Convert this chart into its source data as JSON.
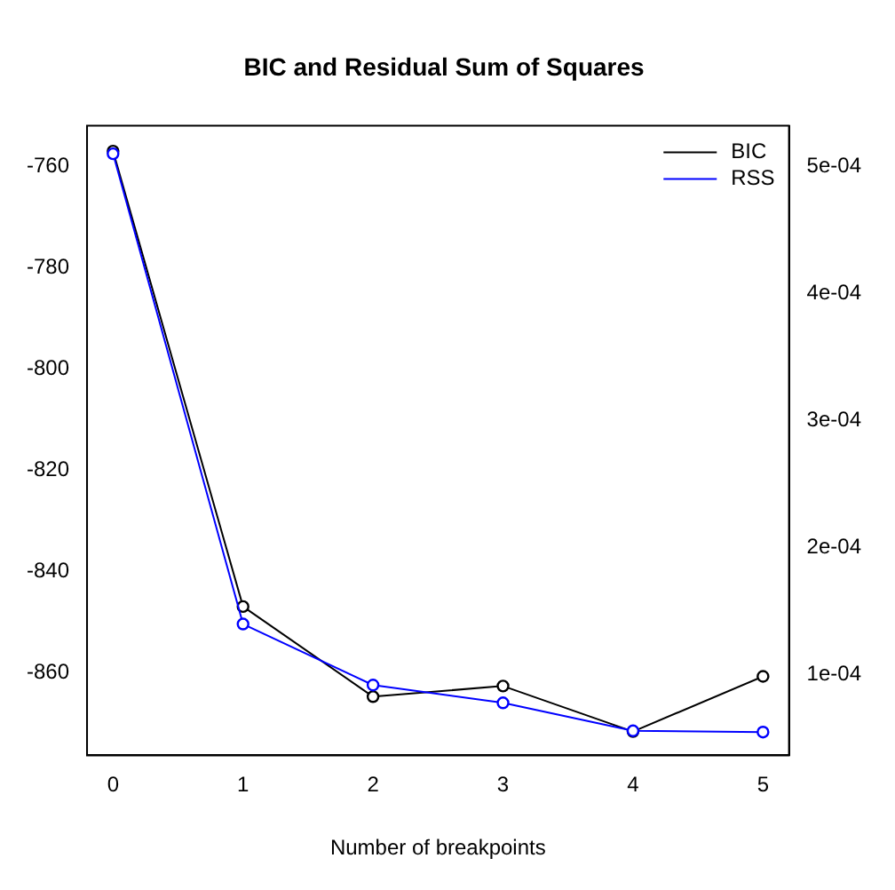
{
  "chart_data": {
    "type": "line",
    "title": "BIC and Residual Sum of Squares",
    "xlabel": "Number of breakpoints",
    "x": [
      0,
      1,
      2,
      3,
      4,
      5
    ],
    "series": [
      {
        "name": "BIC",
        "color": "#000000",
        "values": [
          -757,
          -847,
          -864.8,
          -862.7,
          -871.7,
          -860.8
        ]
      },
      {
        "name": "RSS",
        "color": "#0000ff",
        "axis": "y2",
        "values": [
          0.00051,
          0.00014,
          9.2e-05,
          7.8e-05,
          5.6e-05,
          5.5e-05
        ]
      }
    ],
    "xlim": [
      -0.2,
      5.2
    ],
    "xticks": [
      0,
      1,
      2,
      3,
      4,
      5
    ],
    "ylim": [
      -876.4,
      -752
    ],
    "yticks": [
      -760,
      -780,
      -800,
      -820,
      -840,
      -860
    ],
    "y2lim": [
      3.67e-05,
      0.000532
    ],
    "y2ticks": [
      {
        "value": 0.0001,
        "label": "1e-04"
      },
      {
        "value": 0.0002,
        "label": "2e-04"
      },
      {
        "value": 0.0003,
        "label": "3e-04"
      },
      {
        "value": 0.0004,
        "label": "4e-04"
      },
      {
        "value": 0.0005,
        "label": "5e-04"
      }
    ],
    "grid": false,
    "legend": "top right",
    "marker": "circle",
    "line_style": "solid"
  }
}
